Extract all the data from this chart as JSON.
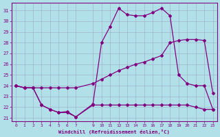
{
  "xlabel": "Windchill (Refroidissement éolien,°C)",
  "bg_color": "#b2e0e8",
  "line_color": "#800080",
  "grid_color": "#a0a8c8",
  "xlim": [
    -0.5,
    23.5
  ],
  "ylim": [
    20.7,
    31.7
  ],
  "yticks": [
    21,
    22,
    23,
    24,
    25,
    26,
    27,
    28,
    29,
    30,
    31
  ],
  "xticks": [
    0,
    1,
    2,
    3,
    4,
    5,
    6,
    7,
    9,
    10,
    11,
    12,
    13,
    14,
    15,
    16,
    17,
    18,
    19,
    20,
    21,
    22,
    23
  ],
  "line1_x": [
    0,
    1,
    2,
    3,
    4,
    5,
    6,
    7,
    9,
    10,
    11,
    12,
    13,
    14,
    15,
    16,
    17,
    18,
    19,
    20,
    21,
    22,
    23
  ],
  "line1_y": [
    24.0,
    23.8,
    23.8,
    23.8,
    23.8,
    23.8,
    23.8,
    23.8,
    24.2,
    24.6,
    25.0,
    25.4,
    25.7,
    26.0,
    26.2,
    26.5,
    26.8,
    28.0,
    28.2,
    28.3,
    28.3,
    28.2,
    23.3
  ],
  "line2_x": [
    0,
    1,
    2,
    3,
    4,
    5,
    6,
    7,
    9,
    10,
    11,
    12,
    13,
    14,
    15,
    16,
    17,
    18,
    19,
    20,
    21,
    22,
    23
  ],
  "line2_y": [
    24.0,
    23.8,
    23.8,
    22.2,
    21.8,
    21.5,
    21.6,
    21.1,
    22.3,
    28.0,
    29.5,
    31.2,
    30.6,
    30.5,
    30.5,
    30.8,
    31.2,
    30.5,
    25.0,
    24.2,
    24.0,
    24.0,
    21.8
  ],
  "line3_x": [
    0,
    1,
    2,
    3,
    4,
    5,
    6,
    7,
    9,
    10,
    11,
    12,
    13,
    14,
    15,
    16,
    17,
    18,
    19,
    20,
    21,
    22,
    23
  ],
  "line3_y": [
    24.0,
    23.8,
    23.8,
    22.2,
    21.8,
    21.5,
    21.5,
    21.1,
    22.2,
    22.2,
    22.2,
    22.2,
    22.2,
    22.2,
    22.2,
    22.2,
    22.2,
    22.2,
    22.2,
    22.2,
    22.0,
    21.8,
    21.8
  ],
  "markersize": 2.0,
  "linewidth": 0.9
}
